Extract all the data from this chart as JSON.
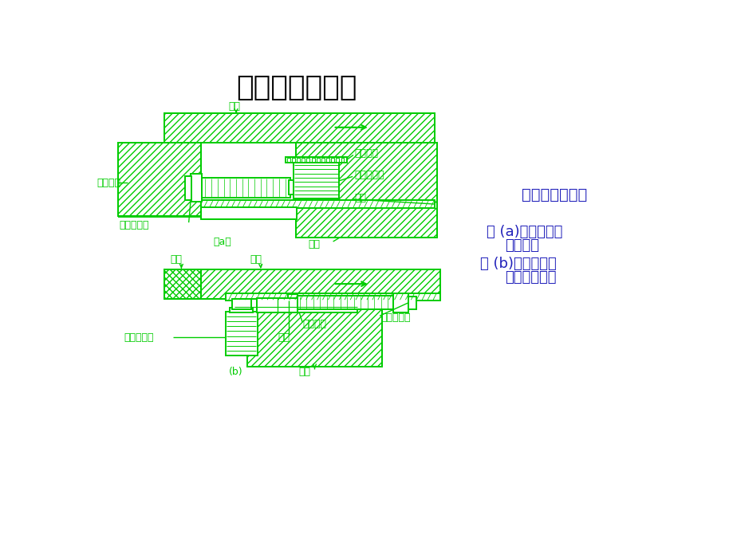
{
  "title": "顶推装置（一）",
  "title_fontsize": 26,
  "bg_color": "#ffffff",
  "draw_color": "#00cc00",
  "text_color_blue": "#2222bb",
  "right_text_title": "推头式顶推装置",
  "right_text_lines": [
    "图 (a)用于桥台处",
    "的顶推。",
    "图 (b)可用于梁中",
    "各点的顶推。"
  ],
  "label_a_liang": "梁体",
  "label_a_zhicheng": "支承垫板",
  "label_a_cuchi": "粗齿垫板",
  "label_a_zhuijing": "竖向千斤顶",
  "label_a_huaban": "滑板",
  "label_a_shuiping": "水平千斤顶",
  "label_a_qiaodun": "桥墩",
  "label_a_sublabel": "（a）",
  "label_b_tuitou": "推头",
  "label_b_liang": "梁体",
  "label_b_zhuijing": "竖向千斤顶",
  "label_b_shuiping": "水半千斤顶",
  "label_b_gudinggang": "固定钢板",
  "label_b_huaban": "滑板",
  "label_b_qiaodun": "桥墩",
  "label_b_sublabel": "(b)"
}
